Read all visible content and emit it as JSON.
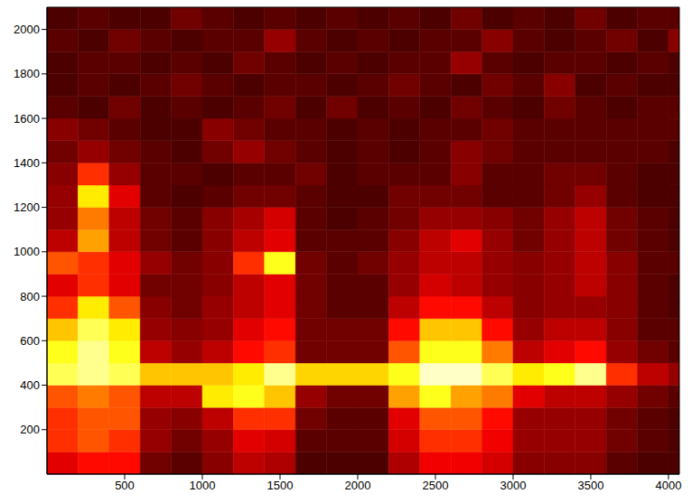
{
  "chart_data": {
    "type": "heatmap",
    "xlim": [
      0,
      4070
    ],
    "ylim": [
      0,
      2100
    ],
    "xticks": [
      500,
      1000,
      1500,
      2000,
      2500,
      3000,
      3500,
      4000
    ],
    "yticks": [
      200,
      400,
      600,
      800,
      1000,
      1200,
      1400,
      1600,
      1800,
      2000
    ],
    "grid": false,
    "x_bins": [
      0,
      200,
      400,
      600,
      800,
      1000,
      1200,
      1400,
      1600,
      1800,
      2000,
      2200,
      2400,
      2600,
      2800,
      3000,
      3200,
      3400,
      3600,
      3800,
      4000,
      4070
    ],
    "y_bins": [
      0,
      100,
      200,
      300,
      400,
      500,
      600,
      700,
      800,
      900,
      1000,
      1100,
      1200,
      1300,
      1400,
      1500,
      1600,
      1700,
      1800,
      1900,
      2000,
      2100
    ],
    "zlim": [
      0.1,
      1
    ],
    "cells": [
      [
        0.4,
        0.45,
        0.45,
        0.25,
        0.22,
        0.28,
        0.35,
        0.33,
        0.2,
        0.2,
        0.2,
        0.33,
        0.42,
        0.42,
        0.38,
        0.28,
        0.28,
        0.28,
        0.22,
        0.2,
        0.2
      ],
      [
        0.5,
        0.55,
        0.5,
        0.3,
        0.25,
        0.3,
        0.4,
        0.38,
        0.22,
        0.22,
        0.22,
        0.38,
        0.5,
        0.5,
        0.42,
        0.3,
        0.3,
        0.3,
        0.25,
        0.22,
        0.2
      ],
      [
        0.5,
        0.55,
        0.55,
        0.3,
        0.28,
        0.35,
        0.5,
        0.5,
        0.25,
        0.22,
        0.22,
        0.4,
        0.55,
        0.55,
        0.45,
        0.3,
        0.3,
        0.3,
        0.25,
        0.22,
        0.2
      ],
      [
        0.55,
        0.6,
        0.55,
        0.35,
        0.35,
        0.75,
        0.8,
        0.7,
        0.3,
        0.25,
        0.25,
        0.65,
        0.8,
        0.65,
        0.6,
        0.4,
        0.35,
        0.35,
        0.3,
        0.25,
        0.22
      ],
      [
        0.85,
        0.9,
        0.85,
        0.7,
        0.7,
        0.7,
        0.75,
        0.9,
        0.72,
        0.72,
        0.72,
        0.8,
        0.95,
        0.95,
        0.85,
        0.75,
        0.8,
        0.9,
        0.5,
        0.35,
        0.3
      ],
      [
        0.8,
        0.9,
        0.8,
        0.35,
        0.3,
        0.35,
        0.45,
        0.5,
        0.25,
        0.25,
        0.25,
        0.55,
        0.8,
        0.8,
        0.6,
        0.35,
        0.4,
        0.45,
        0.3,
        0.25,
        0.22
      ],
      [
        0.7,
        0.85,
        0.75,
        0.3,
        0.28,
        0.3,
        0.4,
        0.45,
        0.25,
        0.25,
        0.25,
        0.45,
        0.7,
        0.7,
        0.45,
        0.3,
        0.35,
        0.35,
        0.28,
        0.22,
        0.22
      ],
      [
        0.5,
        0.75,
        0.55,
        0.28,
        0.25,
        0.3,
        0.35,
        0.4,
        0.25,
        0.22,
        0.22,
        0.35,
        0.45,
        0.45,
        0.35,
        0.28,
        0.3,
        0.3,
        0.28,
        0.22,
        0.2
      ],
      [
        0.4,
        0.5,
        0.4,
        0.25,
        0.25,
        0.28,
        0.35,
        0.4,
        0.25,
        0.22,
        0.22,
        0.3,
        0.38,
        0.35,
        0.3,
        0.28,
        0.3,
        0.35,
        0.28,
        0.22,
        0.2
      ],
      [
        0.55,
        0.5,
        0.4,
        0.3,
        0.25,
        0.28,
        0.5,
        0.8,
        0.25,
        0.22,
        0.25,
        0.3,
        0.35,
        0.35,
        0.3,
        0.28,
        0.3,
        0.35,
        0.28,
        0.22,
        0.22
      ],
      [
        0.35,
        0.65,
        0.35,
        0.25,
        0.22,
        0.28,
        0.35,
        0.4,
        0.22,
        0.22,
        0.22,
        0.28,
        0.35,
        0.4,
        0.3,
        0.25,
        0.3,
        0.35,
        0.25,
        0.22,
        0.2
      ],
      [
        0.3,
        0.6,
        0.35,
        0.25,
        0.22,
        0.28,
        0.32,
        0.38,
        0.22,
        0.2,
        0.22,
        0.25,
        0.3,
        0.3,
        0.28,
        0.25,
        0.3,
        0.35,
        0.25,
        0.22,
        0.2
      ],
      [
        0.3,
        0.75,
        0.4,
        0.22,
        0.2,
        0.22,
        0.25,
        0.25,
        0.22,
        0.2,
        0.2,
        0.25,
        0.25,
        0.25,
        0.22,
        0.22,
        0.25,
        0.3,
        0.22,
        0.2,
        0.2
      ],
      [
        0.28,
        0.5,
        0.3,
        0.22,
        0.22,
        0.2,
        0.22,
        0.22,
        0.25,
        0.2,
        0.22,
        0.22,
        0.22,
        0.28,
        0.22,
        0.22,
        0.25,
        0.25,
        0.22,
        0.2,
        0.2
      ],
      [
        0.25,
        0.3,
        0.25,
        0.22,
        0.2,
        0.25,
        0.3,
        0.25,
        0.22,
        0.2,
        0.22,
        0.2,
        0.22,
        0.28,
        0.25,
        0.22,
        0.22,
        0.22,
        0.22,
        0.22,
        0.2
      ],
      [
        0.28,
        0.25,
        0.22,
        0.2,
        0.2,
        0.28,
        0.25,
        0.22,
        0.22,
        0.2,
        0.22,
        0.2,
        0.22,
        0.22,
        0.25,
        0.22,
        0.22,
        0.22,
        0.22,
        0.22,
        0.22
      ],
      [
        0.22,
        0.2,
        0.25,
        0.2,
        0.22,
        0.2,
        0.22,
        0.25,
        0.2,
        0.25,
        0.2,
        0.22,
        0.2,
        0.25,
        0.22,
        0.2,
        0.25,
        0.22,
        0.2,
        0.22,
        0.22
      ],
      [
        0.2,
        0.22,
        0.2,
        0.22,
        0.25,
        0.22,
        0.2,
        0.22,
        0.22,
        0.2,
        0.22,
        0.25,
        0.22,
        0.2,
        0.25,
        0.22,
        0.28,
        0.2,
        0.22,
        0.2,
        0.2
      ],
      [
        0.2,
        0.22,
        0.22,
        0.2,
        0.22,
        0.2,
        0.25,
        0.22,
        0.2,
        0.22,
        0.2,
        0.22,
        0.22,
        0.3,
        0.22,
        0.2,
        0.22,
        0.22,
        0.2,
        0.22,
        0.2
      ],
      [
        0.22,
        0.2,
        0.25,
        0.22,
        0.2,
        0.22,
        0.22,
        0.3,
        0.22,
        0.2,
        0.22,
        0.2,
        0.22,
        0.22,
        0.28,
        0.22,
        0.2,
        0.22,
        0.25,
        0.2,
        0.28
      ],
      [
        0.2,
        0.22,
        0.2,
        0.2,
        0.25,
        0.22,
        0.2,
        0.22,
        0.2,
        0.22,
        0.2,
        0.22,
        0.2,
        0.25,
        0.2,
        0.22,
        0.2,
        0.25,
        0.2,
        0.22,
        0.22
      ]
    ]
  }
}
